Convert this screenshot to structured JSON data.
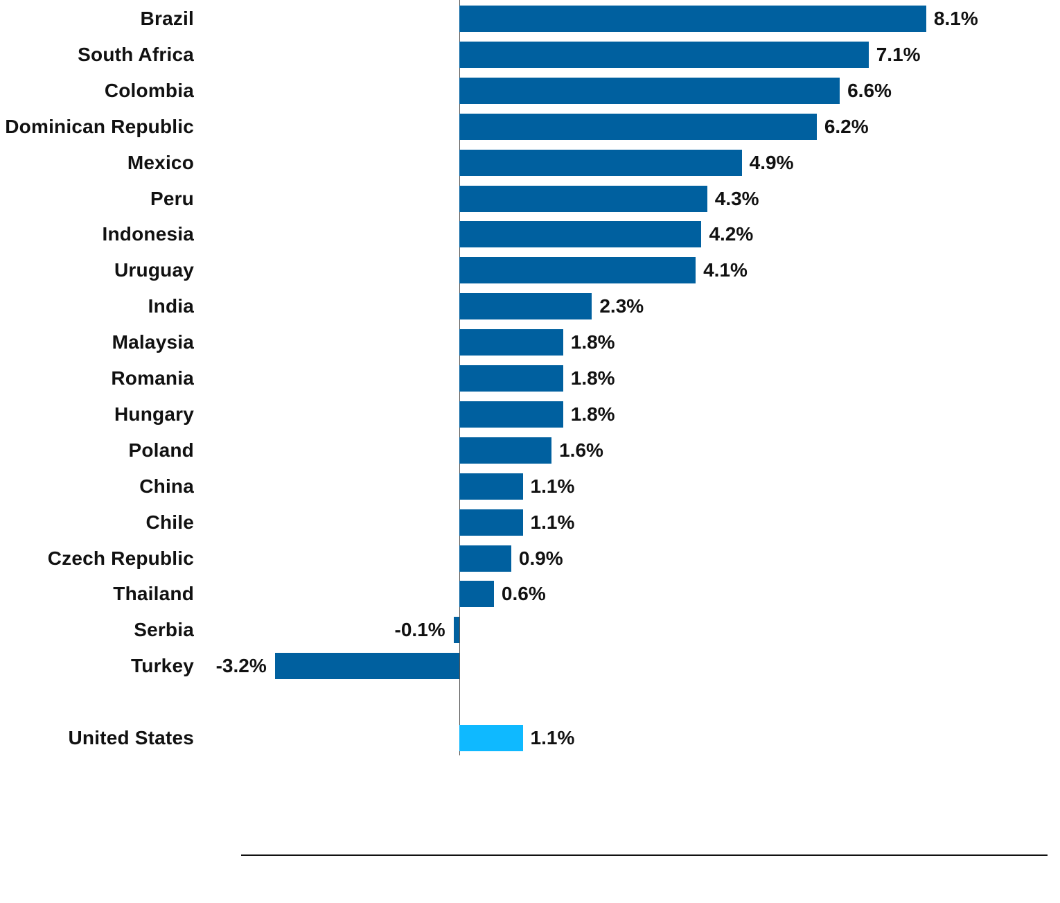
{
  "chart_data": {
    "type": "bar",
    "orientation": "horizontal",
    "title": "",
    "xlabel": "",
    "ylabel": "",
    "categories": [
      "Brazil",
      "South Africa",
      "Colombia",
      "Dominican Republic",
      "Mexico",
      "Peru",
      "Indonesia",
      "Uruguay",
      "India",
      "Malaysia",
      "Romania",
      "Hungary",
      "Poland",
      "China",
      "Chile",
      "Czech Republic",
      "Thailand",
      "Serbia",
      "Turkey",
      "United States"
    ],
    "values": [
      8.1,
      7.1,
      6.6,
      6.2,
      4.9,
      4.3,
      4.2,
      4.1,
      2.3,
      1.8,
      1.8,
      1.8,
      1.6,
      1.1,
      1.1,
      0.9,
      0.6,
      -0.1,
      -3.2,
      1.1
    ],
    "value_labels": [
      "8.1%",
      "7.1%",
      "6.6%",
      "6.2%",
      "4.9%",
      "4.3%",
      "4.2%",
      "4.1%",
      "2.3%",
      "1.8%",
      "1.8%",
      "1.8%",
      "1.6%",
      "1.1%",
      "1.1%",
      "0.9%",
      "0.6%",
      "-0.1%",
      "-3.2%",
      "1.1%"
    ],
    "colors": {
      "emerging": "#00609f",
      "highlight": "#0fb9ff"
    },
    "highlight_category": "United States",
    "xlim": [
      -3.2,
      8.1
    ],
    "grid": false,
    "legend": null
  }
}
